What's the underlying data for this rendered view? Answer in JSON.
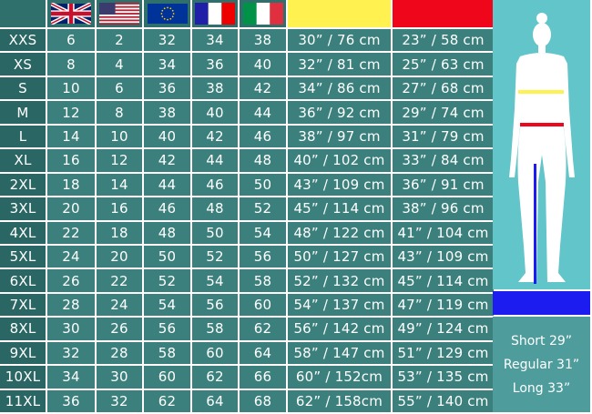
{
  "headers": [
    {
      "icon": "uk-flag-icon"
    },
    {
      "icon": "us-flag-icon"
    },
    {
      "icon": "eu-flag-icon"
    },
    {
      "icon": "france-flag-icon"
    },
    {
      "icon": "italy-flag-icon"
    },
    {
      "color": "#fff150",
      "meaning": "waist"
    },
    {
      "color": "#f0061a",
      "meaning": "hips"
    }
  ],
  "rows": [
    [
      "XXS",
      "6",
      "2",
      "32",
      "34",
      "38",
      "30” / 76 cm",
      "23” / 58 cm"
    ],
    [
      "XS",
      "8",
      "4",
      "34",
      "36",
      "40",
      "32” / 81 cm",
      "25” / 63 cm"
    ],
    [
      "S",
      "10",
      "6",
      "36",
      "38",
      "42",
      "34” / 86 cm",
      "27” / 68 cm"
    ],
    [
      "M",
      "12",
      "8",
      "38",
      "40",
      "44",
      "36” / 92 cm",
      "29” / 74 cm"
    ],
    [
      "L",
      "14",
      "10",
      "40",
      "42",
      "46",
      "38” / 97 cm",
      "31” / 79 cm"
    ],
    [
      "XL",
      "16",
      "12",
      "42",
      "44",
      "48",
      "40” / 102 cm",
      "33” / 84 cm"
    ],
    [
      "2XL",
      "18",
      "14",
      "44",
      "46",
      "50",
      "43” / 109 cm",
      "36” / 91 cm"
    ],
    [
      "3XL",
      "20",
      "16",
      "46",
      "48",
      "52",
      "45” / 114 cm",
      "38” / 96 cm"
    ],
    [
      "4XL",
      "22",
      "18",
      "48",
      "50",
      "54",
      "48” / 122 cm",
      "41” / 104 cm"
    ],
    [
      "5XL",
      "24",
      "20",
      "50",
      "52",
      "56",
      "50” / 127 cm",
      "43” / 109 cm"
    ],
    [
      "6XL",
      "26",
      "22",
      "52",
      "54",
      "58",
      "52” / 132 cm",
      "45” / 114 cm"
    ],
    [
      "7XL",
      "28",
      "24",
      "54",
      "56",
      "60",
      "54” / 137 cm",
      "47” / 119 cm"
    ],
    [
      "8XL",
      "30",
      "26",
      "56",
      "58",
      "62",
      "56” / 142 cm",
      "49” / 124 cm"
    ],
    [
      "9XL",
      "32",
      "28",
      "58",
      "60",
      "64",
      "58” / 147 cm",
      "51” / 129 cm"
    ],
    [
      "10XL",
      "34",
      "30",
      "60",
      "62",
      "66",
      "60” / 152cm",
      "53” / 135 cm"
    ],
    [
      "11XL",
      "36",
      "32",
      "62",
      "64",
      "68",
      "62” / 158cm",
      "55” / 140 cm"
    ]
  ],
  "lengths": [
    "Short 29”",
    "Regular 31”",
    "Long 33”"
  ],
  "colors": {
    "cell": "#3b807c",
    "size_cell": "#2a6663",
    "panel": "#62c5c9",
    "inseam": "#1c1cf0"
  }
}
